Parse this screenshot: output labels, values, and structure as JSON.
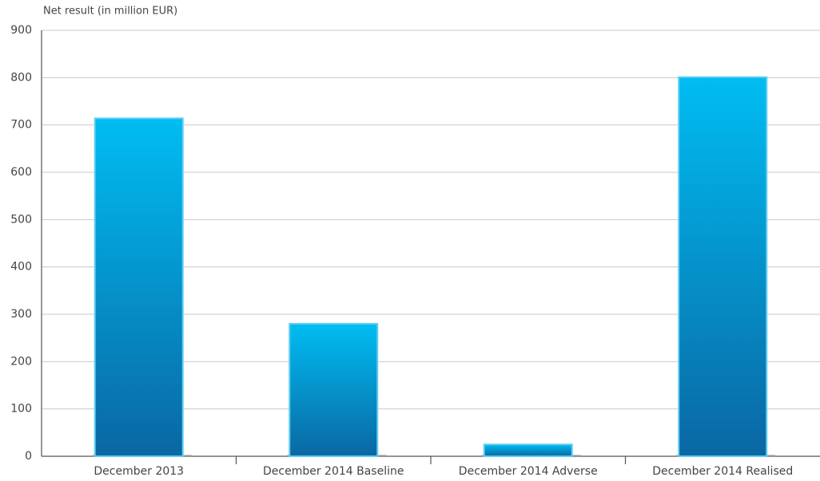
{
  "chart_data": {
    "type": "bar",
    "y_axis_label": "Net result (in million EUR)",
    "categories": [
      "December 2013",
      "December 2014 Baseline",
      "December 2014 Adverse",
      "December 2014 Realised"
    ],
    "values": [
      714,
      280,
      25,
      801
    ],
    "color": "#00bdf2",
    "ylim": [
      0,
      900
    ],
    "yticks": [
      0,
      100,
      200,
      300,
      400,
      500,
      600,
      700,
      800,
      900
    ],
    "grid": true
  }
}
